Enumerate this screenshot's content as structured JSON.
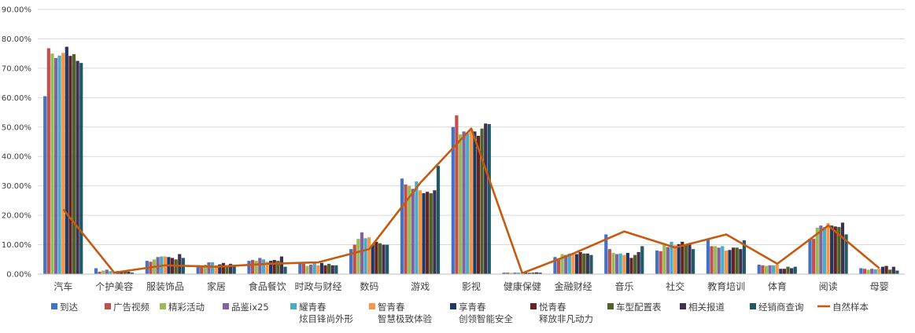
{
  "chart_data": {
    "type": "bar",
    "y_ticks": [
      "0.00%",
      "10.00%",
      "20.00%",
      "30.00%",
      "40.00%",
      "50.00%",
      "60.00%",
      "70.00%",
      "80.00%",
      "90.00%"
    ],
    "ylim": [
      0,
      90
    ],
    "grid": true,
    "legend_position": "bottom",
    "categories": [
      "汽车",
      "个护美容",
      "服装饰品",
      "家居",
      "食品餐饮",
      "时政与财经",
      "数码",
      "游戏",
      "影视",
      "健康保健",
      "金融财经",
      "音乐",
      "社交",
      "教育培训",
      "体育",
      "阅读",
      "母婴"
    ],
    "series": [
      {
        "name": "到达",
        "color": "#4472C4",
        "values": [
          60.5,
          2.0,
          4.5,
          3.0,
          4.5,
          4.0,
          8.5,
          32.5,
          50.0,
          0.5,
          5.8,
          13.5,
          8.0,
          12.0,
          3.2,
          12.0,
          2.0
        ]
      },
      {
        "name": "广告视频",
        "color": "#C0504D",
        "values": [
          76.8,
          0.8,
          4.2,
          2.8,
          4.8,
          3.5,
          10.0,
          30.5,
          54.0,
          0.5,
          5.2,
          8.5,
          7.8,
          9.5,
          3.0,
          12.0,
          1.8
        ]
      },
      {
        "name": "精彩活动",
        "color": "#9BBB59",
        "values": [
          75.0,
          1.2,
          5.0,
          3.2,
          4.5,
          2.8,
          12.0,
          30.0,
          47.5,
          0.4,
          6.8,
          7.2,
          10.5,
          9.5,
          2.8,
          15.8,
          1.5
        ]
      },
      {
        "name": "品鉴ix25",
        "color": "#8064A2",
        "values": [
          73.5,
          1.5,
          5.8,
          4.0,
          5.5,
          3.2,
          14.2,
          29.0,
          48.5,
          0.5,
          6.5,
          6.8,
          9.2,
          9.0,
          3.0,
          16.5,
          1.8
        ]
      },
      {
        "name": "耀青春\n炫目锋尚外形",
        "color": "#4BACC6",
        "values": [
          74.3,
          1.0,
          6.0,
          4.0,
          5.0,
          3.8,
          12.2,
          31.5,
          48.0,
          0.5,
          7.0,
          7.0,
          11.0,
          9.5,
          3.0,
          16.0,
          1.6
        ]
      },
      {
        "name": "智青春\n智慧极致体验",
        "color": "#F79646",
        "values": [
          75.2,
          0.8,
          6.0,
          3.0,
          4.2,
          3.0,
          12.5,
          28.5,
          49.0,
          0.6,
          7.0,
          6.5,
          9.8,
          8.0,
          3.2,
          17.3,
          1.8
        ]
      },
      {
        "name": "享青春\n创领智能安全",
        "color": "#1F3864",
        "values": [
          77.3,
          1.0,
          5.8,
          3.3,
          4.5,
          3.8,
          10.0,
          27.5,
          48.5,
          0.5,
          6.8,
          7.2,
          10.2,
          8.2,
          1.8,
          16.5,
          2.5
        ]
      },
      {
        "name": "悦青春\n释放非凡动力",
        "color": "#632523",
        "values": [
          74.2,
          1.0,
          5.5,
          3.8,
          4.8,
          3.0,
          11.0,
          28.0,
          47.0,
          0.4,
          7.5,
          5.5,
          11.0,
          9.0,
          1.8,
          16.2,
          2.8
        ]
      },
      {
        "name": "车型配置表",
        "color": "#4F6228",
        "values": [
          74.8,
          1.2,
          5.0,
          3.0,
          4.5,
          3.5,
          10.5,
          27.5,
          49.5,
          0.5,
          7.0,
          6.5,
          10.0,
          9.0,
          2.5,
          16.0,
          1.5
        ]
      },
      {
        "name": "相关报道",
        "color": "#3F3151",
        "values": [
          72.5,
          0.8,
          6.8,
          3.5,
          6.0,
          3.0,
          10.0,
          28.5,
          51.2,
          0.6,
          7.0,
          7.5,
          10.5,
          8.5,
          2.0,
          17.5,
          2.5
        ]
      },
      {
        "name": "经销商查询",
        "color": "#215967",
        "values": [
          71.8,
          0.5,
          5.5,
          3.0,
          2.5,
          3.0,
          10.0,
          36.8,
          51.0,
          0.5,
          6.5,
          9.5,
          8.5,
          11.5,
          2.5,
          13.5,
          1.2
        ]
      }
    ],
    "line": {
      "name": "自然样本",
      "color": "#C55A11",
      "values": [
        22.0,
        0.5,
        3.0,
        2.5,
        3.5,
        4.0,
        8.5,
        31.0,
        49.5,
        0.3,
        7.0,
        14.5,
        9.0,
        13.5,
        3.5,
        16.5,
        2.0
      ]
    }
  }
}
